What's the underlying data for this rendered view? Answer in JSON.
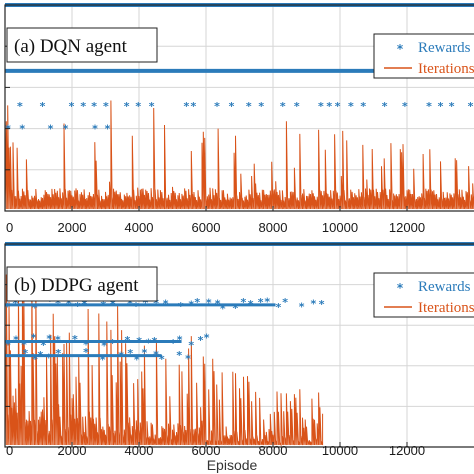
{
  "colors": {
    "rewards": "#2b7bba",
    "iterations": "#d95319",
    "grid": "#d6d6d6",
    "axis": "#222222"
  },
  "chart_data": [
    {
      "type": "scatter",
      "title": "(a) DQN agent",
      "xlabel": "",
      "xlim": [
        0,
        14000
      ],
      "xticks": [
        0,
        2000,
        4000,
        6000,
        8000,
        10000,
        12000
      ],
      "grid": true,
      "legend": {
        "placement": "top-right",
        "entries": [
          "Rewards",
          "Iterations"
        ]
      },
      "series": [
        {
          "name": "Rewards",
          "marker": "asterisk",
          "levels": [
            {
              "level": 1.0,
              "x_range": [
                0,
                14000
              ],
              "density": "continuous"
            },
            {
              "level": 0.68,
              "x_range": [
                0,
                14000
              ],
              "density": "continuous"
            },
            {
              "level": 0.51,
              "x_range": [
                0,
                14000
              ],
              "density": "sparse"
            },
            {
              "level": 0.4,
              "x_range": [
                0,
                3500
              ],
              "density": "sparse"
            }
          ]
        },
        {
          "name": "Iterations",
          "style": "line",
          "baseline_level": 0.1,
          "x_range": [
            0,
            14000
          ],
          "spike_max": 0.6
        }
      ]
    },
    {
      "type": "scatter",
      "title": "(b) DDPG agent",
      "xlabel": "Episode",
      "xlim": [
        0,
        14000
      ],
      "xticks": [
        0,
        2000,
        4000,
        6000,
        8000,
        10000,
        12000
      ],
      "grid": true,
      "legend": {
        "placement": "top-right",
        "entries": [
          "Rewards",
          "Iterations"
        ]
      },
      "series": [
        {
          "name": "Rewards",
          "marker": "asterisk",
          "levels": [
            {
              "level": 1.0,
              "x_range": [
                0,
                14000
              ],
              "density": "continuous"
            },
            {
              "level": 0.7,
              "x_range": [
                0,
                9500
              ],
              "density": "dense"
            },
            {
              "level": 0.52,
              "x_range": [
                0,
                6200
              ],
              "density": "dense"
            },
            {
              "level": 0.45,
              "x_range": [
                0,
                5500
              ],
              "density": "dense"
            }
          ]
        },
        {
          "name": "Iterations",
          "style": "line",
          "baseline_level": 0.15,
          "x_range": [
            0,
            9500
          ],
          "spike_max": 0.85
        }
      ]
    }
  ]
}
